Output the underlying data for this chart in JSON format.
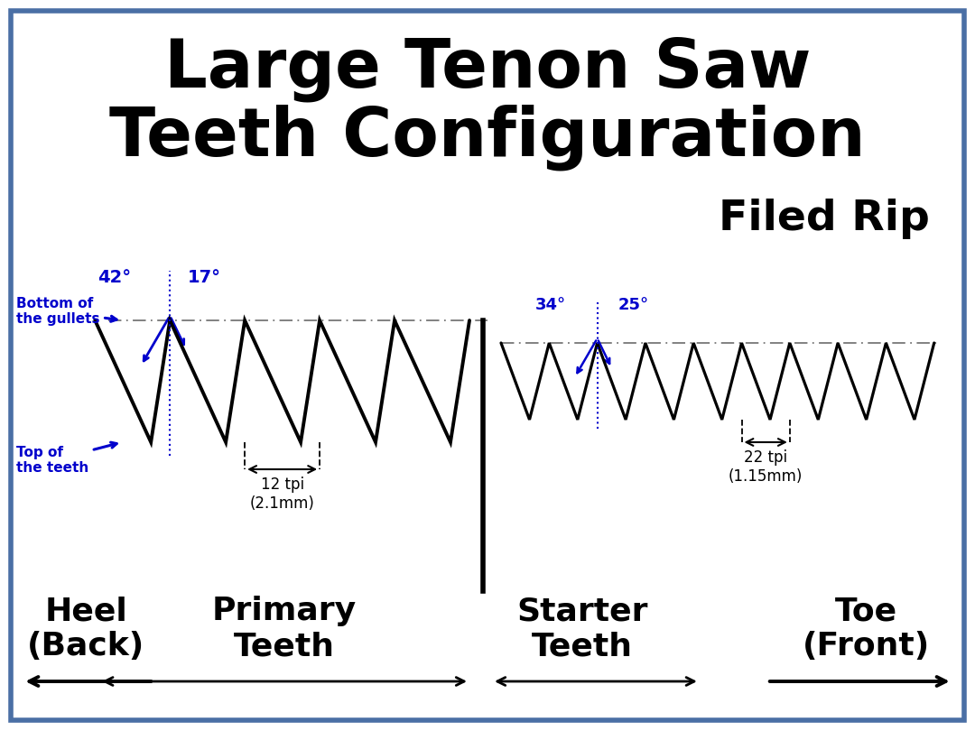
{
  "title": "Large Tenon Saw\nTeeth Configuration",
  "filed_rip": "Filed Rip",
  "background_color": "#ffffff",
  "border_color": "#4a6fa5",
  "title_fontsize": 54,
  "title_color": "#000000",
  "filed_rip_fontsize": 34,
  "primary_teeth_label": "Primary\nTeeth",
  "starter_teeth_label": "Starter\nTeeth",
  "toe_label": "Toe\n(Front)",
  "heel_label": "Heel\n(Back)",
  "label_fontsize": 26,
  "annotation_color": "#0000cc",
  "annotation_fontsize": 13,
  "gullet_label": "Bottom of\nthe gullets",
  "top_label": "Top of\nthe teeth",
  "primary_angle_left": "42°",
  "primary_angle_right": "17°",
  "starter_angle_left": "34°",
  "starter_angle_right": "25°",
  "primary_tpi": "12 tpi\n(2.1mm)",
  "starter_tpi": "22 tpi\n(1.15mm)"
}
